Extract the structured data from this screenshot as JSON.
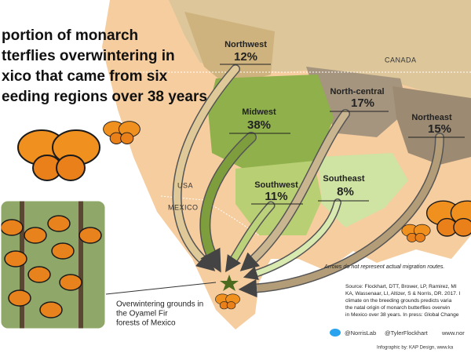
{
  "title_lines": [
    "portion of monarch",
    "tterflies overwintering in",
    "xico that came from six",
    "eeding regions over 38 years"
  ],
  "regions": [
    {
      "name": "Northwest",
      "percent": "12%"
    },
    {
      "name": "Midwest",
      "percent": "38%"
    },
    {
      "name": "North-central",
      "percent": "17%"
    },
    {
      "name": "Northeast",
      "percent": "15%"
    },
    {
      "name": "Southwest",
      "percent": "11%"
    },
    {
      "name": "Southeast",
      "percent": "8%"
    }
  ],
  "map_labels": {
    "canada": "CANADA",
    "usa": "USA",
    "mexico": "MEXICO"
  },
  "note": "Arrows do not represent actual migration routes.",
  "source_lines": [
    "Source: Flockhart, DTT, Brower, LP, Ramirez, MI",
    "KA, Wassenaar, LI, Altizer, S & Norris, DR. 2017. I",
    "climate on the breeding grounds predicts varia",
    "the natal origin of monarch butterflies overwin",
    "in Mexico over 38 years. In press: Global Change"
  ],
  "inset_caption": [
    "Overwintering grounds in",
    "the Oyamel Fir",
    "forests of Mexico"
  ],
  "social": [
    "@NorrisLab",
    "@TylerFlockhart",
    "www.nor"
  ],
  "credit": "Infographic by: KAP Design, www.ka"
}
